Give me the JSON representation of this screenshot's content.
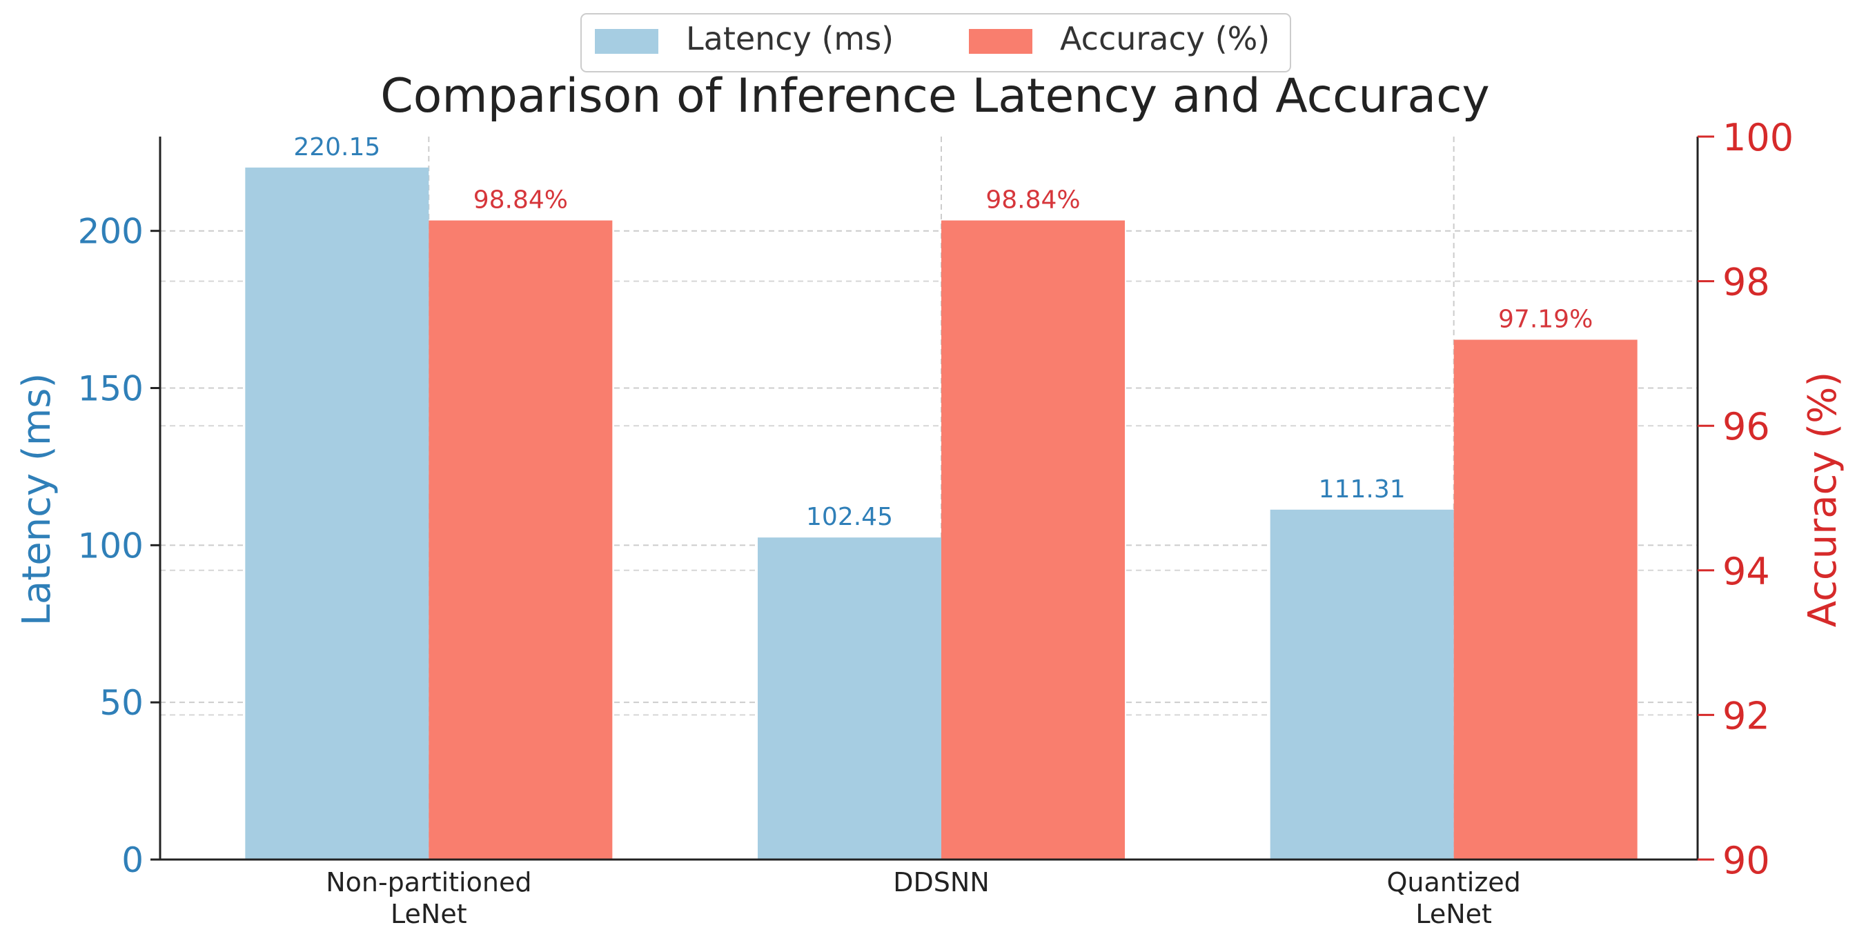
{
  "chart_data": {
    "type": "bar",
    "title": "Comparison of Inference Latency and Accuracy",
    "categories": [
      [
        "Non-partitioned",
        "LeNet"
      ],
      [
        "DDSNN"
      ],
      [
        "Quantized",
        "LeNet"
      ]
    ],
    "series": [
      {
        "name": "Latency (ms)",
        "axis": "left",
        "color": "#a6cde2",
        "label_color": "#2f7fb8",
        "values": [
          220.15,
          102.45,
          111.31
        ],
        "value_labels": [
          "220.15",
          "102.45",
          "111.31"
        ]
      },
      {
        "name": "Accuracy (%)",
        "axis": "right",
        "color": "#f97e6e",
        "label_color": "#d6363b",
        "values": [
          98.84,
          98.84,
          97.19
        ],
        "value_labels": [
          "98.84%",
          "98.84%",
          "97.19%"
        ]
      }
    ],
    "y_left": {
      "label": "Latency (ms)",
      "ylim": [
        0,
        230
      ],
      "ticks": [
        0,
        50,
        100,
        150,
        200
      ],
      "color": "#2f7fb8"
    },
    "y_right": {
      "label": "Accuracy (%)",
      "ylim": [
        90,
        100
      ],
      "ticks": [
        90,
        92,
        94,
        96,
        98,
        100
      ],
      "color": "#d62a2a"
    },
    "grid": true,
    "legend_position": "top-center"
  }
}
